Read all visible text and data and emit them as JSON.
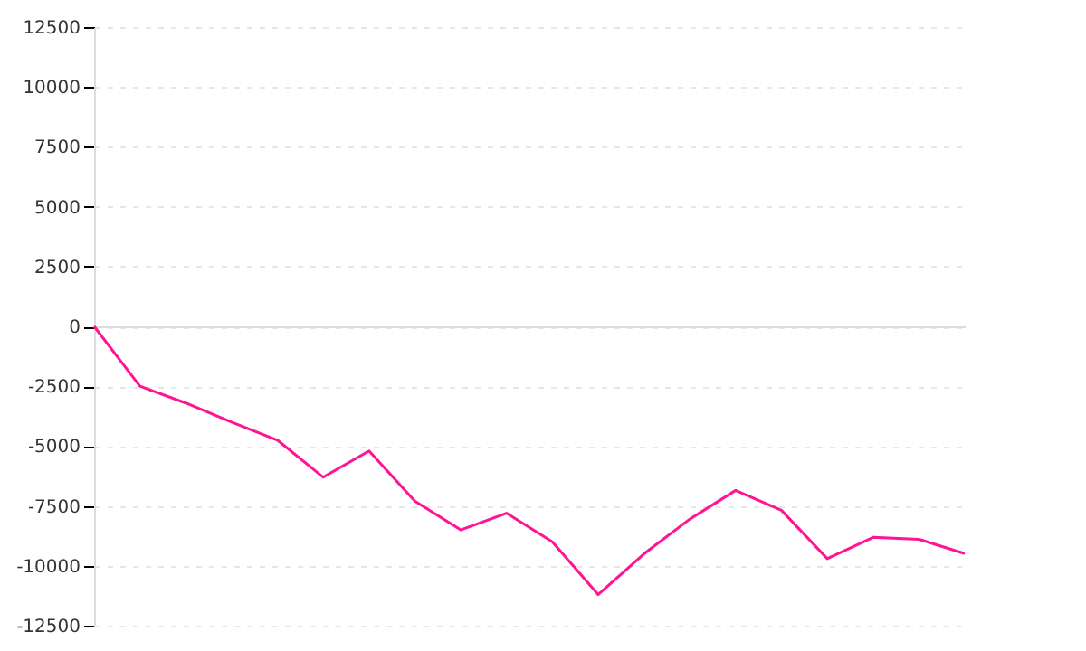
{
  "chart_data": {
    "type": "line",
    "categories": [
      null,
      null,
      null,
      null,
      null,
      null,
      null,
      null,
      null,
      null,
      null,
      null,
      null,
      null,
      null,
      null,
      null,
      null,
      null,
      null
    ],
    "series": [
      {
        "color": "#ff1493",
        "values": [
          0,
          -2500,
          -3200,
          -4000,
          -4750,
          -6300,
          -5200,
          -7300,
          -8500,
          -7800,
          -9000,
          -11200,
          -9500,
          -8050,
          -6850,
          -7680,
          -9700,
          -8810,
          -8890,
          -9490
        ]
      }
    ],
    "ylim": [
      -12500,
      12500
    ],
    "yticks": [
      -12500,
      -10000,
      -7500,
      -5000,
      -2500,
      0,
      2500,
      5000,
      7500,
      10000,
      12500
    ],
    "grid": "y",
    "marker": "none",
    "line_style": "solid"
  }
}
